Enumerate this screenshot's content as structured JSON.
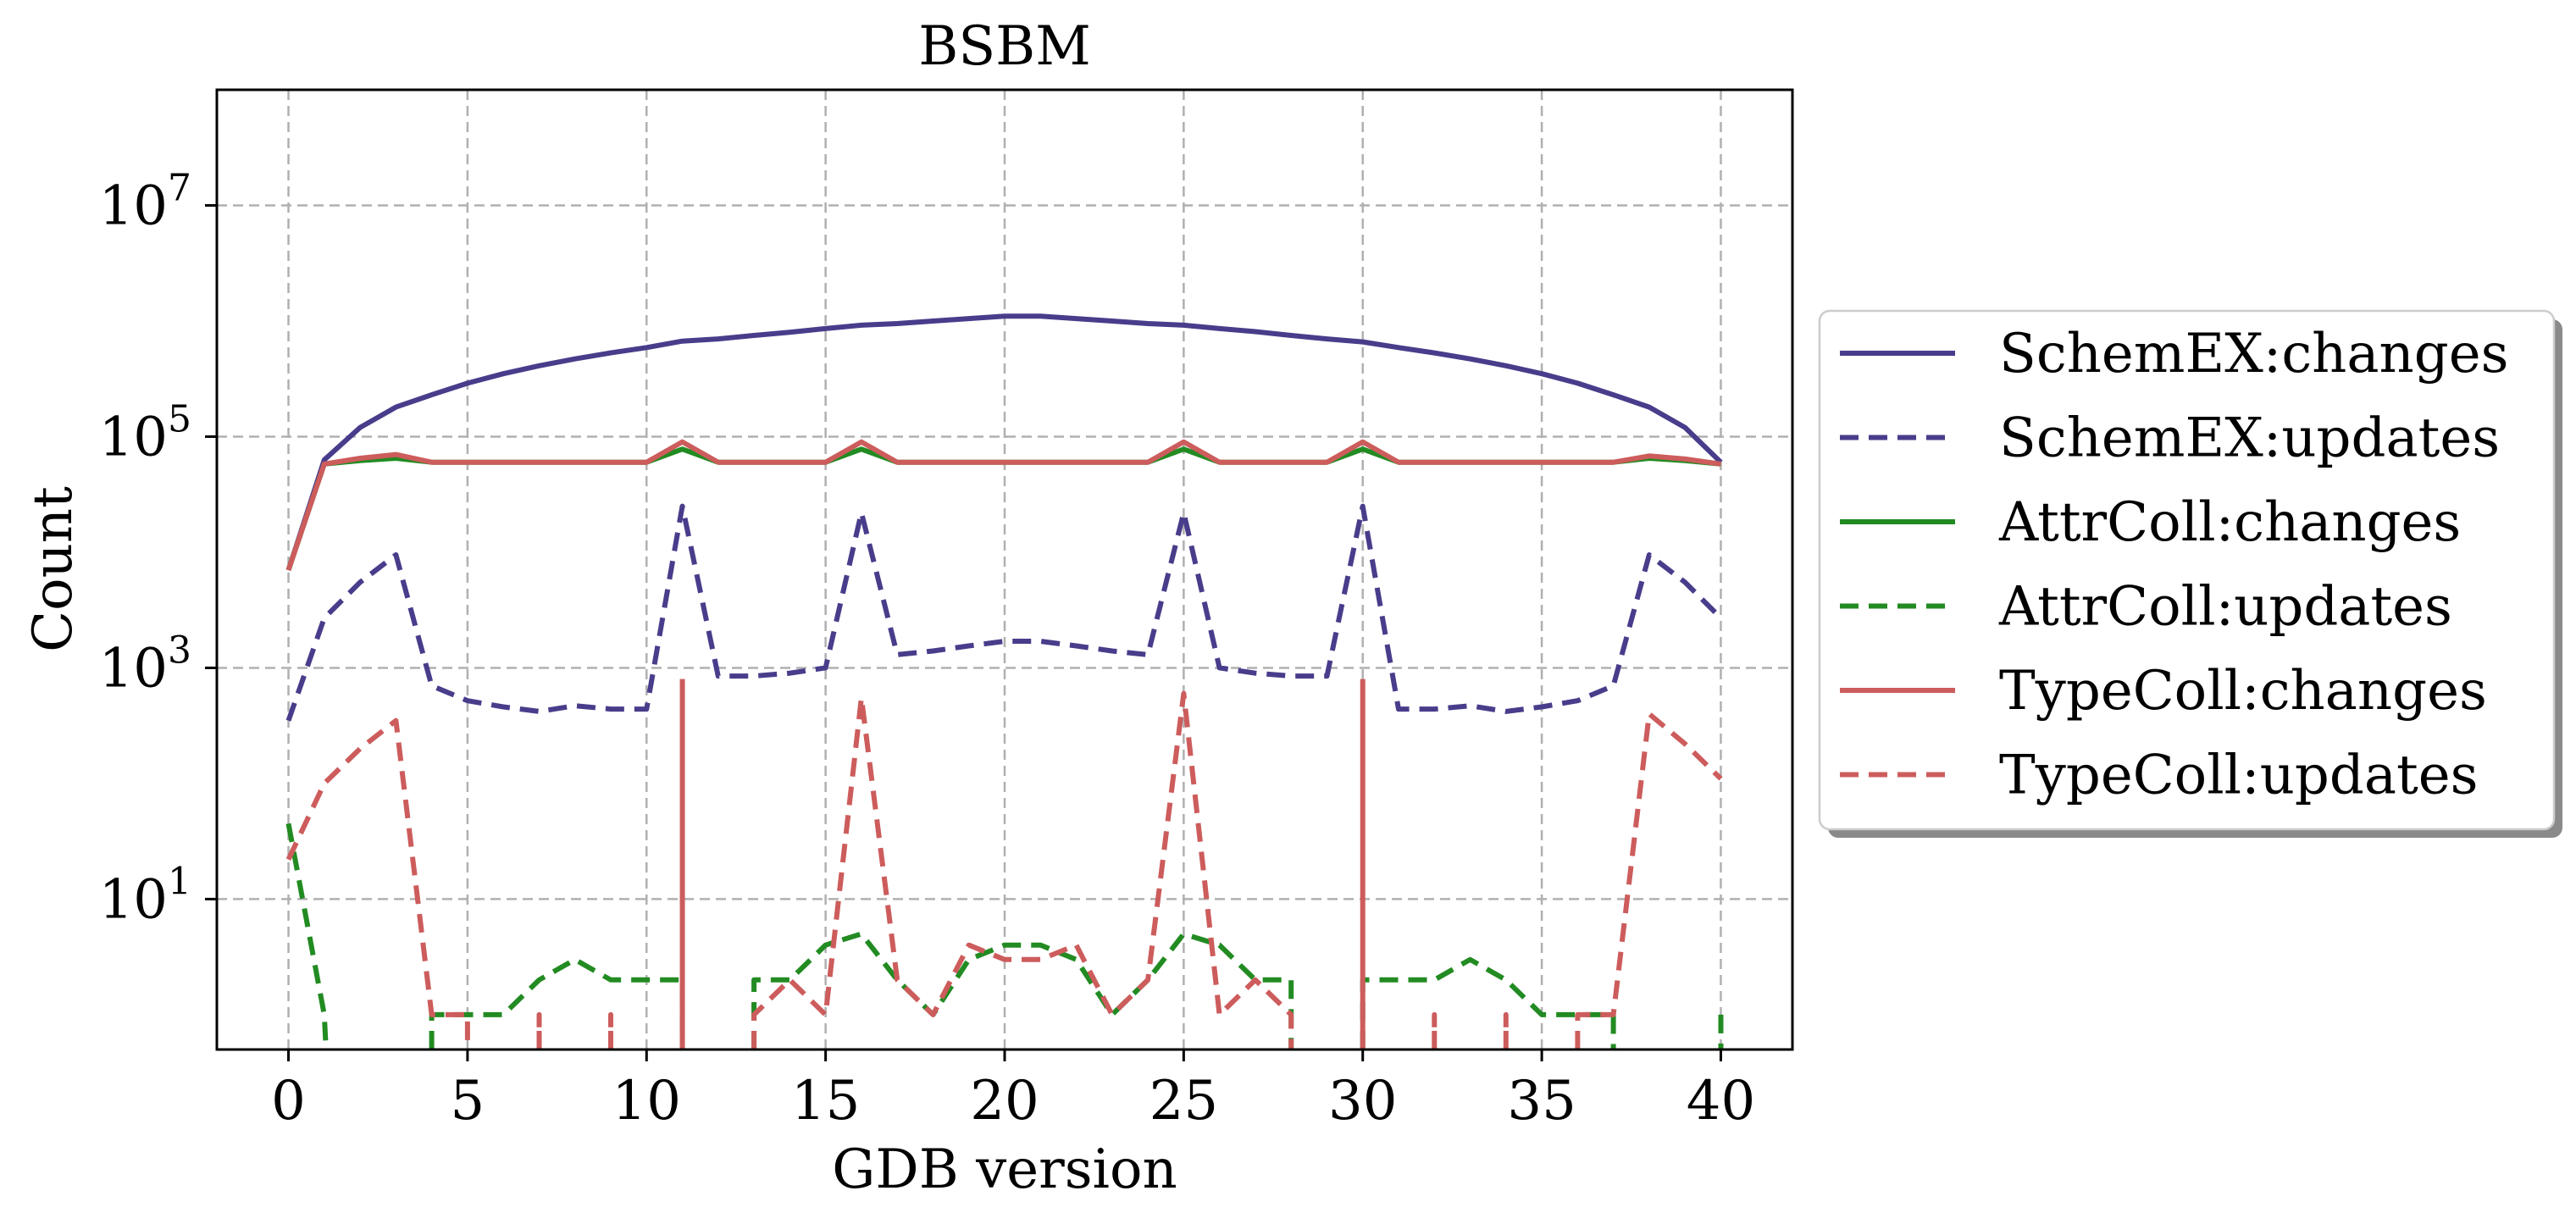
{
  "chart_data": {
    "type": "line",
    "title": "BSBM",
    "xlabel": "GDB version",
    "ylabel": "Count",
    "yscale": "log",
    "xlim": [
      -2,
      42
    ],
    "ylim": [
      0.5,
      100000000
    ],
    "xticks": [
      0,
      5,
      10,
      15,
      20,
      25,
      30,
      35,
      40
    ],
    "xtick_labels": [
      "0",
      "5",
      "10",
      "15",
      "20",
      "25",
      "30",
      "35",
      "40"
    ],
    "yticks": [
      {
        "value": 10,
        "base": "10",
        "exp": "1"
      },
      {
        "value": 1000,
        "base": "10",
        "exp": "3"
      },
      {
        "value": 100000,
        "base": "10",
        "exp": "5"
      },
      {
        "value": 10000000,
        "base": "10",
        "exp": "7"
      }
    ],
    "grid": true,
    "legend_position": "right",
    "series": [
      {
        "name": "SchemEX:changes",
        "color": "#483d8b",
        "dash": "solid",
        "points": [
          [
            0,
            7000
          ],
          [
            1,
            63000
          ],
          [
            2,
            120000
          ],
          [
            3,
            180000
          ],
          [
            4,
            230000
          ],
          [
            5,
            290000
          ],
          [
            6,
            350000
          ],
          [
            7,
            410000
          ],
          [
            8,
            470000
          ],
          [
            9,
            530000
          ],
          [
            10,
            590000
          ],
          [
            11,
            670000
          ],
          [
            12,
            700000
          ],
          [
            13,
            750000
          ],
          [
            14,
            800000
          ],
          [
            15,
            860000
          ],
          [
            16,
            920000
          ],
          [
            17,
            950000
          ],
          [
            18,
            1000000
          ],
          [
            19,
            1050000
          ],
          [
            20,
            1100000
          ],
          [
            21,
            1100000
          ],
          [
            22,
            1050000
          ],
          [
            23,
            1000000
          ],
          [
            24,
            950000
          ],
          [
            25,
            920000
          ],
          [
            26,
            860000
          ],
          [
            27,
            810000
          ],
          [
            28,
            750000
          ],
          [
            29,
            700000
          ],
          [
            30,
            660000
          ],
          [
            31,
            590000
          ],
          [
            32,
            530000
          ],
          [
            33,
            470000
          ],
          [
            34,
            410000
          ],
          [
            35,
            350000
          ],
          [
            36,
            290000
          ],
          [
            37,
            230000
          ],
          [
            38,
            180000
          ],
          [
            39,
            120000
          ],
          [
            40,
            60000
          ]
        ]
      },
      {
        "name": "SchemEX:updates",
        "color": "#483d8b",
        "dash": "dashed",
        "points": [
          [
            0,
            350
          ],
          [
            1,
            2700
          ],
          [
            2,
            5500
          ],
          [
            3,
            9500
          ],
          [
            4,
            700
          ],
          [
            5,
            520
          ],
          [
            6,
            460
          ],
          [
            7,
            420
          ],
          [
            8,
            470
          ],
          [
            9,
            440
          ],
          [
            10,
            440
          ],
          [
            11,
            25000
          ],
          [
            12,
            850
          ],
          [
            13,
            850
          ],
          [
            14,
            900
          ],
          [
            15,
            1000
          ],
          [
            16,
            22000
          ],
          [
            17,
            1300
          ],
          [
            18,
            1400
          ],
          [
            19,
            1550
          ],
          [
            20,
            1700
          ],
          [
            21,
            1700
          ],
          [
            22,
            1550
          ],
          [
            23,
            1400
          ],
          [
            24,
            1300
          ],
          [
            25,
            22000
          ],
          [
            26,
            1000
          ],
          [
            27,
            900
          ],
          [
            28,
            850
          ],
          [
            29,
            850
          ],
          [
            30,
            25000
          ],
          [
            31,
            440
          ],
          [
            32,
            440
          ],
          [
            33,
            470
          ],
          [
            34,
            420
          ],
          [
            35,
            460
          ],
          [
            36,
            520
          ],
          [
            37,
            700
          ],
          [
            38,
            9500
          ],
          [
            39,
            5500
          ],
          [
            40,
            2700
          ]
        ]
      },
      {
        "name": "AttrColl:changes",
        "color": "#228b22",
        "dash": "solid",
        "points": [
          [
            0,
            7000
          ],
          [
            1,
            58000
          ],
          [
            2,
            62000
          ],
          [
            3,
            65000
          ],
          [
            4,
            60000
          ],
          [
            5,
            60000
          ],
          [
            6,
            60000
          ],
          [
            7,
            60000
          ],
          [
            8,
            60000
          ],
          [
            9,
            60000
          ],
          [
            10,
            60000
          ],
          [
            11,
            78000
          ],
          [
            12,
            60000
          ],
          [
            13,
            60000
          ],
          [
            14,
            60000
          ],
          [
            15,
            60000
          ],
          [
            16,
            78000
          ],
          [
            17,
            60000
          ],
          [
            18,
            60000
          ],
          [
            19,
            60000
          ],
          [
            20,
            60000
          ],
          [
            21,
            60000
          ],
          [
            22,
            60000
          ],
          [
            23,
            60000
          ],
          [
            24,
            60000
          ],
          [
            25,
            78000
          ],
          [
            26,
            60000
          ],
          [
            27,
            60000
          ],
          [
            28,
            60000
          ],
          [
            29,
            60000
          ],
          [
            30,
            78000
          ],
          [
            31,
            60000
          ],
          [
            32,
            60000
          ],
          [
            33,
            60000
          ],
          [
            34,
            60000
          ],
          [
            35,
            60000
          ],
          [
            36,
            60000
          ],
          [
            37,
            60000
          ],
          [
            38,
            65000
          ],
          [
            39,
            62000
          ],
          [
            40,
            58000
          ]
        ]
      },
      {
        "name": "AttrColl:updates",
        "color": "#228b22",
        "dash": "dashed",
        "segments": [
          [
            [
              0,
              45
            ],
            [
              1,
              1
            ],
            [
              1.05,
              0.5
            ]
          ],
          [
            [
              4,
              0.5
            ],
            [
              4,
              1
            ],
            [
              6,
              1
            ],
            [
              7,
              2
            ],
            [
              8,
              3
            ],
            [
              9,
              2
            ],
            [
              10,
              2
            ],
            [
              11,
              2
            ],
            [
              11,
              0.5
            ]
          ],
          [
            [
              13,
              0.5
            ],
            [
              13,
              2
            ],
            [
              14,
              2
            ],
            [
              15,
              4
            ],
            [
              16,
              5
            ],
            [
              17,
              2
            ],
            [
              18,
              1
            ],
            [
              19,
              3
            ],
            [
              20,
              4
            ],
            [
              21,
              4
            ],
            [
              22,
              3
            ],
            [
              23,
              1
            ],
            [
              24,
              2
            ],
            [
              25,
              5
            ],
            [
              26,
              4
            ],
            [
              27,
              2
            ],
            [
              28,
              2
            ],
            [
              28,
              0.5
            ]
          ],
          [
            [
              30,
              0.5
            ],
            [
              30,
              2
            ],
            [
              31,
              2
            ],
            [
              32,
              2
            ],
            [
              33,
              3
            ],
            [
              34,
              2
            ],
            [
              35,
              1
            ],
            [
              36,
              1
            ],
            [
              37,
              1
            ],
            [
              37,
              0.5
            ]
          ],
          [
            [
              40,
              1
            ],
            [
              40,
              0.5
            ]
          ]
        ]
      },
      {
        "name": "TypeColl:changes",
        "color": "#cd5c5c",
        "dash": "solid",
        "points": [
          [
            0,
            7000
          ],
          [
            1,
            58000
          ],
          [
            2,
            65000
          ],
          [
            3,
            70000
          ],
          [
            4,
            60000
          ],
          [
            5,
            60000
          ],
          [
            6,
            60000
          ],
          [
            7,
            60000
          ],
          [
            8,
            60000
          ],
          [
            9,
            60000
          ],
          [
            10,
            60000
          ],
          [
            11,
            90000
          ],
          [
            12,
            60000
          ],
          [
            13,
            60000
          ],
          [
            14,
            60000
          ],
          [
            15,
            60000
          ],
          [
            16,
            90000
          ],
          [
            17,
            60000
          ],
          [
            18,
            60000
          ],
          [
            19,
            60000
          ],
          [
            20,
            60000
          ],
          [
            21,
            60000
          ],
          [
            22,
            60000
          ],
          [
            23,
            60000
          ],
          [
            24,
            60000
          ],
          [
            25,
            90000
          ],
          [
            26,
            60000
          ],
          [
            27,
            60000
          ],
          [
            28,
            60000
          ],
          [
            29,
            60000
          ],
          [
            30,
            90000
          ],
          [
            31,
            60000
          ],
          [
            32,
            60000
          ],
          [
            33,
            60000
          ],
          [
            34,
            60000
          ],
          [
            35,
            60000
          ],
          [
            36,
            60000
          ],
          [
            37,
            60000
          ],
          [
            38,
            68000
          ],
          [
            39,
            64000
          ],
          [
            40,
            58000
          ]
        ],
        "spikes": [
          {
            "x": 11,
            "top": 800
          },
          {
            "x": 30,
            "top": 800
          }
        ]
      },
      {
        "name": "TypeColl:updates",
        "color": "#cd5c5c",
        "dash": "dashed",
        "segments": [
          [
            [
              0,
              22
            ],
            [
              1,
              100
            ],
            [
              2,
              200
            ],
            [
              3,
              350
            ],
            [
              4,
              1
            ],
            [
              5,
              1
            ],
            [
              5,
              0.5
            ]
          ],
          [
            [
              7,
              0.5
            ],
            [
              7,
              1
            ],
            [
              7,
              0.5
            ]
          ],
          [
            [
              9,
              0.5
            ],
            [
              9,
              1
            ],
            [
              9,
              0.5
            ]
          ],
          [
            [
              13,
              0.5
            ],
            [
              13,
              1
            ],
            [
              14,
              2
            ],
            [
              15,
              1
            ],
            [
              16,
              550
            ],
            [
              17,
              2
            ],
            [
              18,
              1
            ],
            [
              19,
              4
            ],
            [
              20,
              3
            ],
            [
              21,
              3
            ],
            [
              22,
              4
            ],
            [
              23,
              1
            ],
            [
              24,
              2
            ],
            [
              25,
              600
            ],
            [
              26,
              1
            ],
            [
              27,
              2
            ],
            [
              28,
              1
            ],
            [
              28,
              0.5
            ]
          ],
          [
            [
              32,
              0.5
            ],
            [
              32,
              1
            ],
            [
              32,
              0.5
            ]
          ],
          [
            [
              34,
              0.5
            ],
            [
              34,
              1
            ],
            [
              34,
              0.5
            ]
          ],
          [
            [
              36,
              0.5
            ],
            [
              36,
              1
            ],
            [
              37,
              1
            ],
            [
              38,
              400
            ],
            [
              39,
              220
            ],
            [
              40,
              110
            ]
          ]
        ]
      }
    ]
  }
}
